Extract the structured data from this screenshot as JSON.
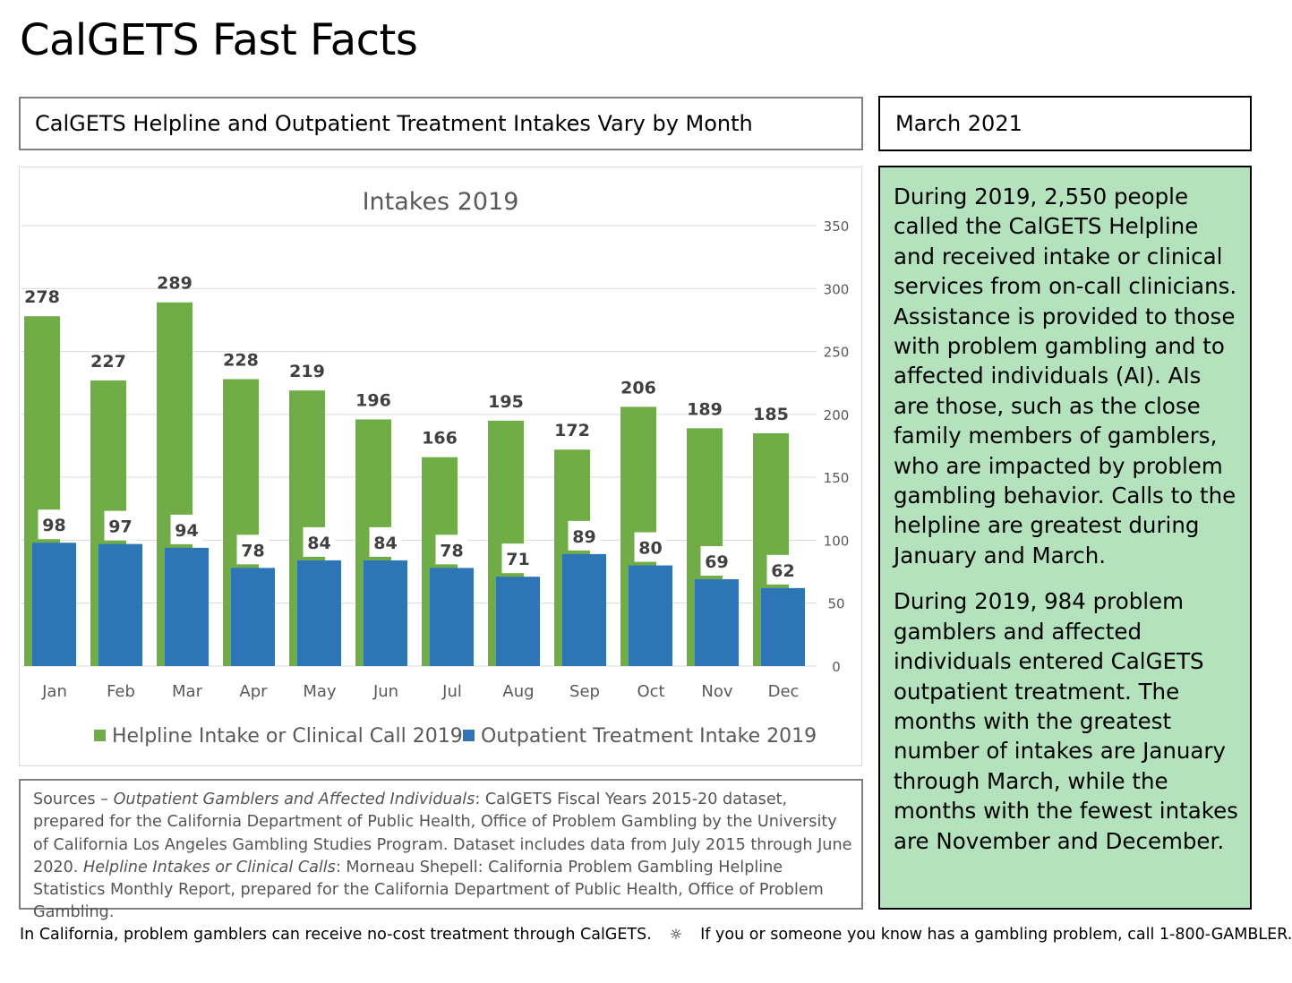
{
  "page": {
    "title": "CalGETS Fast Facts",
    "headline": "CalGETS Helpline and Outpatient Treatment Intakes Vary by Month",
    "date": "March 2021"
  },
  "summary": {
    "paragraph1": "During 2019, 2,550 people called the CalGETS Helpline and received intake or clinical services from on-call clinicians. Assistance is provided to those with problem gambling and to affected individuals (AI). AIs are those, such as the close family members of gamblers, who are impacted by problem gambling behavior. Calls to the helpline are greatest during January and March.",
    "paragraph2": "During 2019, 984 problem gamblers and affected individuals entered CalGETS outpatient treatment. The months with the greatest number of intakes are January through March, while the months with the fewest intakes are November and December."
  },
  "sources": {
    "prefix": "Sources – ",
    "source1_title": "Outpatient Gamblers and Affected Individuals",
    "source1_text": ": CalGETS Fiscal Years 2015-20 dataset, prepared for the California Department of Public Health, Office of Problem Gambling by the University of California Los Angeles Gambling Studies Program. Dataset includes data from July 2015 through June 2020.  ",
    "source2_title": "Helpline Intakes or Clinical Calls",
    "source2_text": ": Morneau Shepell: California Problem Gambling Helpline Statistics Monthly Report, prepared for the California Department of Public Health, Office of Problem Gambling."
  },
  "footer": {
    "left": "In California, problem gamblers can receive no-cost treatment through CalGETS.",
    "separator": "☼",
    "right": "If you or someone you know has a gambling problem, call 1-800-GAMBLER."
  },
  "chart_data": {
    "type": "bar",
    "title": "Intakes 2019",
    "categories": [
      "Jan",
      "Feb",
      "Mar",
      "Apr",
      "May",
      "Jun",
      "Jul",
      "Aug",
      "Sep",
      "Oct",
      "Nov",
      "Dec"
    ],
    "series": [
      {
        "name": "Helpline Intake or Clinical Call 2019",
        "color": "#70ad47",
        "values": [
          278,
          227,
          289,
          228,
          219,
          196,
          166,
          195,
          172,
          206,
          189,
          185
        ]
      },
      {
        "name": "Outpatient Treatment Intake 2019",
        "color": "#2e75b6",
        "values": [
          98,
          97,
          94,
          78,
          84,
          84,
          78,
          71,
          89,
          80,
          69,
          62
        ]
      }
    ],
    "ylim": [
      0,
      350
    ],
    "yticks": [
      0,
      50,
      100,
      150,
      200,
      250,
      300,
      350
    ],
    "y_axis_side": "right",
    "grid": true,
    "legend": "bottom",
    "data_labels": true
  }
}
